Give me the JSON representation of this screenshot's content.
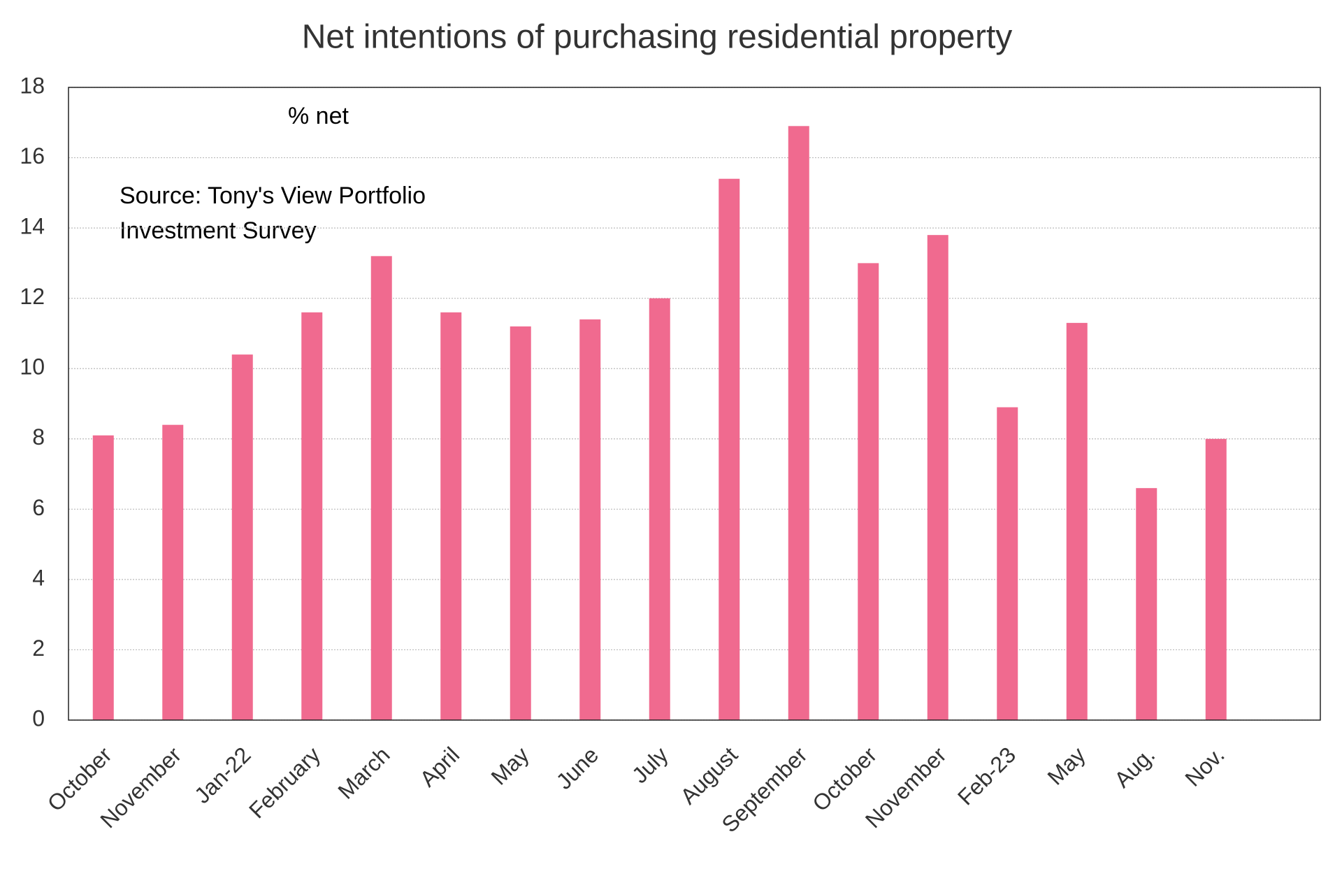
{
  "chart_data": {
    "type": "bar",
    "title": "Net intentions of purchasing residential property",
    "annotations": [
      "% net",
      "Source: Tony's View Portfolio",
      "Investment Survey"
    ],
    "categories": [
      "October",
      "November",
      "Jan-22",
      "February",
      "March",
      "April",
      "May",
      "June",
      "July",
      "August",
      "September",
      "October",
      "November",
      "Feb-23",
      "May",
      "Aug.",
      "Nov.",
      null
    ],
    "values": [
      8.1,
      8.4,
      10.4,
      11.6,
      13.2,
      11.6,
      11.2,
      11.4,
      12.0,
      15.4,
      16.9,
      13.0,
      13.8,
      8.9,
      11.3,
      6.6,
      8.0,
      null
    ],
    "color": "#f06a8f",
    "ylim": [
      0,
      18
    ],
    "yticks": [
      0,
      2,
      4,
      6,
      8,
      10,
      12,
      14,
      16,
      18
    ],
    "grid": true
  }
}
